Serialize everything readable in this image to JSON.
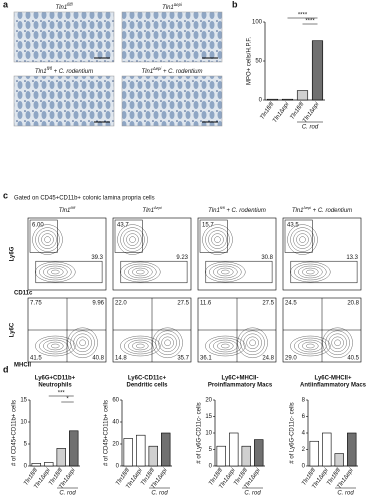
{
  "panels": {
    "a": {
      "label": "a",
      "images": [
        {
          "base": "Tln1",
          "sup": "fl/fl",
          "suffix": ""
        },
        {
          "base": "Tln1",
          "sup": "∆epi",
          "suffix": ""
        },
        {
          "base": "Tln1",
          "sup": "fl/fl",
          "suffix": " + C. rodentium"
        },
        {
          "base": "Tln1",
          "sup": "∆epi",
          "suffix": " + C. rodentium"
        }
      ]
    },
    "b": {
      "label": "b"
    },
    "c": {
      "label": "c",
      "title": "Gated on CD45+CD11b+ colonic lamina propria cells",
      "columns": [
        {
          "base": "Tln1",
          "sup": "fl/fl",
          "suffix": ""
        },
        {
          "base": "Tln1",
          "sup": "∆epi",
          "suffix": ""
        },
        {
          "base": "Tln1",
          "sup": "fl/fl",
          "suffix": " + C. rodentium"
        },
        {
          "base": "Tln1",
          "sup": "∆epi",
          "suffix": " + C. rodentium"
        }
      ],
      "row1": {
        "y_axis": "Ly6G",
        "x_axis": "CD11c",
        "plots": [
          [
            "6.00",
            "39.3"
          ],
          [
            "43.7",
            "9.23"
          ],
          [
            "15.7",
            "30.8"
          ],
          [
            "43.5",
            "13.3"
          ]
        ]
      },
      "row2": {
        "y_axis": "Ly6C",
        "x_axis": "MHCII",
        "plots": [
          [
            "7.75",
            "9.96",
            "41.5",
            "40.8"
          ],
          [
            "22.0",
            "27.5",
            "14.8",
            "35.7"
          ],
          [
            "11.6",
            "27.5",
            "36.1",
            "24.8"
          ],
          [
            "24.5",
            "20.8",
            "29.0",
            "40.5"
          ]
        ]
      }
    },
    "d": {
      "label": "d"
    }
  },
  "chart_data": [
    {
      "type": "bar",
      "ylabel": "MPO+ cells/H.P.F.",
      "categories": [
        "Tln1fl/fl",
        "Tln1∆epi",
        "Tln1fl/fl",
        "Tln1∆epi"
      ],
      "group_label": "C. rod",
      "values": [
        1,
        1,
        12,
        76
      ],
      "colors": [
        "#ffffff",
        "#ffffff",
        "#d0d0d0",
        "#707070"
      ],
      "ylim": [
        0,
        100
      ],
      "yticks": [
        0,
        50,
        100
      ],
      "annotations": [
        "****",
        "****"
      ]
    },
    {
      "type": "bar",
      "title": [
        "Ly6G+CD11b+",
        "Neutrophils"
      ],
      "ylabel": "# of CD45+CD11b+ cells",
      "categories": [
        "Tln1fl/fl",
        "Tln1∆epi",
        "Tln1fl/fl",
        "Tln1∆epi"
      ],
      "group_label": "C. rod",
      "values": [
        0.6,
        0.8,
        4,
        8
      ],
      "colors": [
        "#ffffff",
        "#ffffff",
        "#d0d0d0",
        "#707070"
      ],
      "ylim": [
        0,
        15
      ],
      "yticks": [
        0,
        5,
        10,
        15
      ],
      "annotations": [
        "***",
        "*"
      ]
    },
    {
      "type": "bar",
      "title": [
        "Ly6C-CD11c+",
        "Dendritic cells"
      ],
      "ylabel": "# of CD45+CD11b+ cells",
      "categories": [
        "Tln1fl/fl",
        "Tln1∆epi",
        "Tln1fl/fl",
        "Tln1∆epi"
      ],
      "group_label": "C. rod",
      "values": [
        25,
        28,
        18,
        30
      ],
      "colors": [
        "#ffffff",
        "#ffffff",
        "#d0d0d0",
        "#707070"
      ],
      "ylim": [
        0,
        60
      ],
      "yticks": [
        0,
        20,
        40,
        60
      ]
    },
    {
      "type": "bar",
      "title": [
        "Ly6C+MHCII-",
        "Proinflammatory Macs"
      ],
      "ylabel": "# of Ly6G-CD11c- cells",
      "categories": [
        "Tln1fl/fl",
        "Tln1∆epi",
        "Tln1fl/fl",
        "Tln1∆epi"
      ],
      "group_label": "C. rod",
      "values": [
        6,
        10,
        6,
        8
      ],
      "colors": [
        "#ffffff",
        "#ffffff",
        "#d0d0d0",
        "#707070"
      ],
      "ylim": [
        0,
        20
      ],
      "yticks": [
        0,
        5,
        10,
        15,
        20
      ]
    },
    {
      "type": "bar",
      "title": [
        "Ly6C-MHCII+",
        "Antiinflammatory Macs"
      ],
      "ylabel": "# of Ly6G-CD11c- cells",
      "categories": [
        "Tln1fl/fl",
        "Tln1∆epi",
        "Tln1fl/fl",
        "Tln1∆epi"
      ],
      "group_label": "C. rod",
      "values": [
        3,
        4,
        1.5,
        4
      ],
      "colors": [
        "#ffffff",
        "#ffffff",
        "#d0d0d0",
        "#707070"
      ],
      "ylim": [
        0,
        8
      ],
      "yticks": [
        0,
        2,
        4,
        6,
        8
      ]
    }
  ]
}
